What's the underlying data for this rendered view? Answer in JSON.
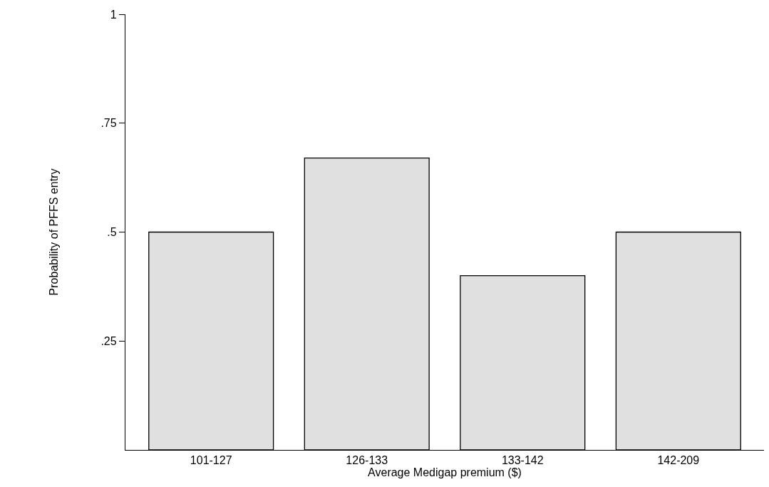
{
  "chart_data": {
    "type": "bar",
    "xlabel": "Average Medigap premium ($)",
    "ylabel": "Probability of PFFS entry",
    "categories": [
      "101-127",
      "126-133",
      "133-142",
      "142-209"
    ],
    "values": [
      0.5,
      0.67,
      0.4,
      0.5
    ],
    "color": "#e0e0e0",
    "ylim": [
      0,
      1
    ],
    "yticks": [
      {
        "value": 0.25,
        "label": ".25"
      },
      {
        "value": 0.5,
        "label": ".5"
      },
      {
        "value": 0.75,
        "label": ".75"
      },
      1
    ]
  }
}
